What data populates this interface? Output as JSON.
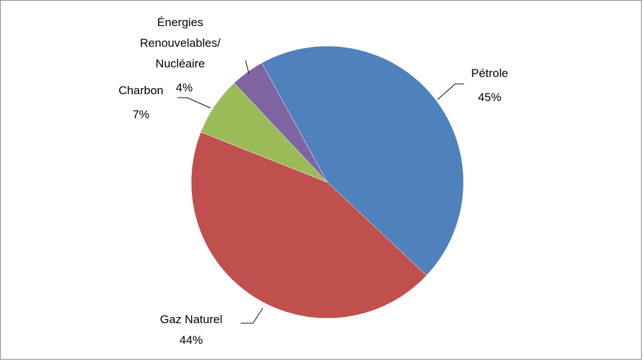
{
  "chart_data": {
    "type": "pie",
    "categories": [
      "Pétrole",
      "Gaz Naturel",
      "Charbon",
      "Énergies Renouvelables/ Nucléaire"
    ],
    "values": [
      45,
      44,
      7,
      4
    ],
    "value_labels": [
      "45%",
      "44%",
      "7%",
      "4%"
    ],
    "colors": [
      "#4f81bd",
      "#c0504d",
      "#9bbb59",
      "#8064a2"
    ]
  }
}
